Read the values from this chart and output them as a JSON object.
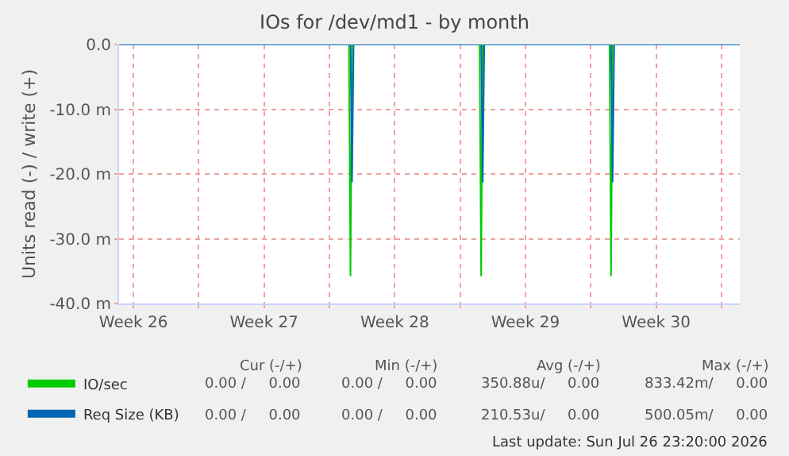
{
  "chart_data": {
    "type": "line",
    "title": "IOs for /dev/md1 - by month",
    "ylabel": "Units read (-) / write (+)",
    "series": [
      {
        "name": "IO/sec",
        "color": "#00cc00",
        "x": [
          "2026-06-24T17:30",
          "2026-07-07T01:00",
          "2026-07-07T03:00",
          "2026-07-07T05:00",
          "2026-07-14T01:00",
          "2026-07-14T03:00",
          "2026-07-14T05:00",
          "2026-07-21T00:00",
          "2026-07-21T02:00",
          "2026-07-21T04:00",
          "2026-07-27T23:30"
        ],
        "values": [
          0,
          0,
          -35.8,
          0,
          0,
          -35.8,
          0,
          0,
          -35.8,
          0,
          0
        ]
      },
      {
        "name": "Req Size (KB)",
        "color": "#0066b3",
        "x": [
          "2026-06-24T17:30",
          "2026-07-07T03:00",
          "2026-07-07T05:00",
          "2026-07-07T07:00",
          "2026-07-14T03:00",
          "2026-07-14T05:00",
          "2026-07-14T07:00",
          "2026-07-21T02:00",
          "2026-07-21T04:00",
          "2026-07-21T06:00",
          "2026-07-27T23:30"
        ],
        "values": [
          0,
          0,
          -21.3,
          0,
          0,
          -21.3,
          0,
          0,
          -21.3,
          0,
          0
        ]
      }
    ],
    "xlim": [
      "2026-06-24T17:30",
      "2026-07-27T23:30"
    ],
    "xticks": [
      {
        "value": "2026-06-25T12:00",
        "label": "Week 26"
      },
      {
        "value": "2026-06-29",
        "label": null
      },
      {
        "value": "2026-07-02T12:00",
        "label": "Week 27"
      },
      {
        "value": "2026-07-06",
        "label": null
      },
      {
        "value": "2026-07-09T12:00",
        "label": "Week 28"
      },
      {
        "value": "2026-07-13",
        "label": null
      },
      {
        "value": "2026-07-16T12:00",
        "label": "Week 29"
      },
      {
        "value": "2026-07-20",
        "label": null
      },
      {
        "value": "2026-07-23T12:00",
        "label": "Week 30"
      },
      {
        "value": "2026-07-27",
        "label": null
      }
    ],
    "ylim": [
      -40,
      0
    ],
    "yticks": [
      {
        "value": 0,
        "label": "0.0"
      },
      {
        "value": -10,
        "label": "-10.0 m"
      },
      {
        "value": -20,
        "label": "-20.0 m"
      },
      {
        "value": -30,
        "label": "-30.0 m"
      },
      {
        "value": -40,
        "label": "-40.0 m"
      }
    ],
    "grid": true,
    "legend": "bottom left",
    "marker": "none",
    "line_style": "solid",
    "annotations": [
      "Cur (-/+)",
      "Min (-/+)",
      "Avg (-/+)",
      "Max (-/+)",
      "0.00 /     0.00",
      "0.00 /     0.00",
      "350.88u/     0.00",
      "833.42m/     0.00",
      "0.00 /     0.00",
      "0.00 /     0.00",
      "210.53u/     0.00",
      "500.05m/     0.00",
      "Last update: Sun Jul 26 23:20:00 2026"
    ]
  }
}
